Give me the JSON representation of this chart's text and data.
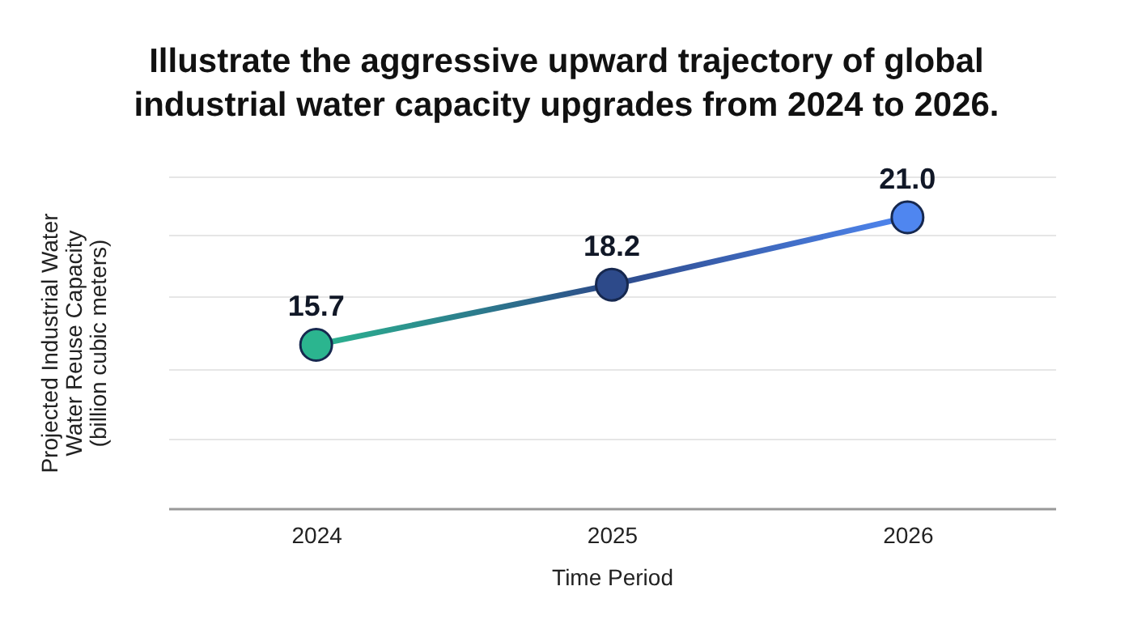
{
  "chart_data": {
    "type": "line",
    "title": "Illustrate the aggressive upward trajectory of global\nindustrial water capacity upgrades from 2024 to 2026.",
    "xlabel": "Time Period",
    "ylabel": "Projected Industrial Water\nWater Reuse Capacity\n(billion cubic meters)",
    "categories": [
      "2024",
      "2025",
      "2026"
    ],
    "series": [
      {
        "colors": [
          "#2bb58f",
          "#2d4a8a",
          "#4f86f0"
        ],
        "values": [
          15.7,
          18.2,
          21.0
        ],
        "value_labels": [
          "15.7",
          "18.2",
          "21.0"
        ]
      }
    ],
    "ylim": [
      8.9,
      22.7
    ],
    "yticks": [
      {
        "value": 8.9,
        "label": null
      },
      {
        "value": 11.8,
        "label": null
      },
      {
        "value": 14.7,
        "label": null
      },
      {
        "value": 17.7,
        "label": null
      },
      {
        "value": 20.3,
        "label": null
      },
      {
        "value": 22.7,
        "label": null
      }
    ],
    "grid": "y",
    "tick_labels": "x",
    "marker": "circle"
  }
}
